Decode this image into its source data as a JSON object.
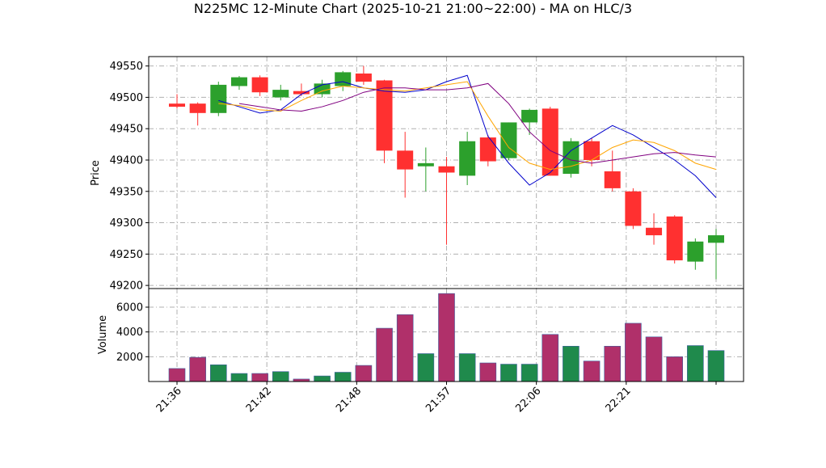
{
  "chart_data": {
    "type": "candlestick",
    "title": "N225MC 12-Minute Chart (2025-10-21 21:00~22:00) - MA on HLC/3",
    "price_panel": {
      "ylabel": "Price",
      "ylim": [
        49195,
        49565
      ],
      "yticks": [
        49200,
        49250,
        49300,
        49350,
        49400,
        49450,
        49500,
        49550
      ],
      "grid": true
    },
    "volume_panel": {
      "ylabel": "Volume",
      "ylim": [
        0,
        7500
      ],
      "yticks": [
        2000,
        4000,
        6000
      ],
      "grid": true
    },
    "x_ticks": [
      "21:36",
      "21:42",
      "21:48",
      "21:57",
      "22:06",
      "22:21"
    ],
    "candles": [
      {
        "open": 49490,
        "high": 49505,
        "low": 49482,
        "close": 49485,
        "volume": 1050
      },
      {
        "open": 49490,
        "high": 49492,
        "low": 49455,
        "close": 49475,
        "volume": 1950
      },
      {
        "open": 49475,
        "high": 49525,
        "low": 49470,
        "close": 49520,
        "volume": 1350
      },
      {
        "open": 49518,
        "high": 49534,
        "low": 49512,
        "close": 49532,
        "volume": 650
      },
      {
        "open": 49532,
        "high": 49535,
        "low": 49502,
        "close": 49508,
        "volume": 650
      },
      {
        "open": 49500,
        "high": 49520,
        "low": 49495,
        "close": 49512,
        "volume": 800
      },
      {
        "open": 49510,
        "high": 49522,
        "low": 49502,
        "close": 49505,
        "volume": 200
      },
      {
        "open": 49505,
        "high": 49528,
        "low": 49500,
        "close": 49522,
        "volume": 450
      },
      {
        "open": 49518,
        "high": 49542,
        "low": 49510,
        "close": 49540,
        "volume": 750
      },
      {
        "open": 49538,
        "high": 49550,
        "low": 49520,
        "close": 49525,
        "volume": 1300
      },
      {
        "open": 49527,
        "high": 49528,
        "low": 49395,
        "close": 49415,
        "volume": 4300
      },
      {
        "open": 49415,
        "high": 49445,
        "low": 49340,
        "close": 49385,
        "volume": 5400
      },
      {
        "open": 49390,
        "high": 49420,
        "low": 49350,
        "close": 49395,
        "volume": 2250
      },
      {
        "open": 49390,
        "high": 49405,
        "low": 49265,
        "close": 49380,
        "volume": 7100
      },
      {
        "open": 49375,
        "high": 49445,
        "low": 49360,
        "close": 49430,
        "volume": 2250
      },
      {
        "open": 49436,
        "high": 49440,
        "low": 49390,
        "close": 49398,
        "volume": 1500
      },
      {
        "open": 49403,
        "high": 49460,
        "low": 49400,
        "close": 49460,
        "volume": 1400
      },
      {
        "open": 49460,
        "high": 49482,
        "low": 49440,
        "close": 49480,
        "volume": 1400
      },
      {
        "open": 49482,
        "high": 49485,
        "low": 49375,
        "close": 49375,
        "volume": 3800
      },
      {
        "open": 49378,
        "high": 49435,
        "low": 49372,
        "close": 49430,
        "volume": 2850
      },
      {
        "open": 49430,
        "high": 49435,
        "low": 49390,
        "close": 49400,
        "volume": 1650
      },
      {
        "open": 49382,
        "high": 49415,
        "low": 49350,
        "close": 49355,
        "volume": 2850
      },
      {
        "open": 49350,
        "high": 49355,
        "low": 49290,
        "close": 49295,
        "volume": 4700
      },
      {
        "open": 49292,
        "high": 49315,
        "low": 49265,
        "close": 49280,
        "volume": 3600
      },
      {
        "open": 49310,
        "high": 49312,
        "low": 49235,
        "close": 49240,
        "volume": 2000
      },
      {
        "open": 49238,
        "high": 49275,
        "low": 49225,
        "close": 49270,
        "volume": 2900
      },
      {
        "open": 49268,
        "high": 49290,
        "low": 49210,
        "close": 49280,
        "volume": 2500
      }
    ],
    "moving_averages": [
      {
        "color": "#0000cc",
        "values": [
          49495,
          49485,
          49475,
          49480,
          49505,
          49520,
          49525,
          49515,
          49510,
          49508,
          49512,
          49525,
          49535,
          49438,
          49395,
          49360,
          49380,
          49415,
          49435,
          49455,
          49440,
          49420,
          49400,
          49375,
          49340
        ]
      },
      {
        "color": "#ffa500",
        "values": [
          49490,
          49487,
          49480,
          49478,
          49495,
          49510,
          49518,
          49515,
          49512,
          49510,
          49515,
          49520,
          49525,
          49470,
          49420,
          49395,
          49385,
          49390,
          49400,
          49420,
          49432,
          49428,
          49415,
          49395,
          49385
        ]
      },
      {
        "color": "#800080",
        "values": [
          49490,
          49485,
          49480,
          49478,
          49485,
          49495,
          49508,
          49515,
          49515,
          49512,
          49512,
          49515,
          49522,
          49490,
          49445,
          49415,
          49400,
          49395,
          49400,
          49405,
          49410,
          49412,
          49408,
          49405
        ]
      }
    ]
  }
}
